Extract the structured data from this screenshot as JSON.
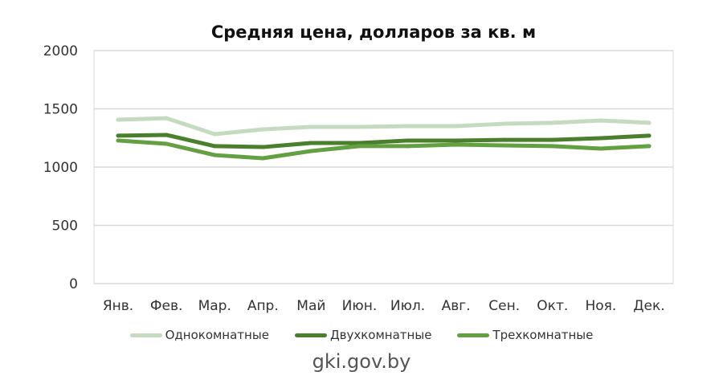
{
  "chart_data": {
    "type": "line",
    "title": "Средняя цена, долларов за кв. м",
    "xlabel": "",
    "ylabel": "",
    "ylim": [
      0,
      2000
    ],
    "yticks": [
      0,
      500,
      1000,
      1500,
      2000
    ],
    "grid": true,
    "legend_position": "bottom",
    "categories": [
      "Янв.",
      "Фев.",
      "Мар.",
      "Апр.",
      "Май",
      "Июн.",
      "Июл.",
      "Авг.",
      "Сен.",
      "Окт.",
      "Ноя.",
      "Дек."
    ],
    "series": [
      {
        "name": "Однокомнатные",
        "color": "#c5dbbf",
        "values": [
          1407,
          1420,
          1283,
          1324,
          1345,
          1345,
          1352,
          1352,
          1372,
          1380,
          1400,
          1380
        ]
      },
      {
        "name": "Двухкомнатные",
        "color": "#4a7f2c",
        "values": [
          1270,
          1276,
          1180,
          1172,
          1207,
          1207,
          1228,
          1228,
          1234,
          1234,
          1248,
          1270
        ]
      },
      {
        "name": "Трехкомнатные",
        "color": "#62a042",
        "values": [
          1228,
          1200,
          1103,
          1076,
          1138,
          1180,
          1180,
          1193,
          1186,
          1180,
          1159,
          1180
        ]
      }
    ]
  },
  "source": "gki.gov.by"
}
